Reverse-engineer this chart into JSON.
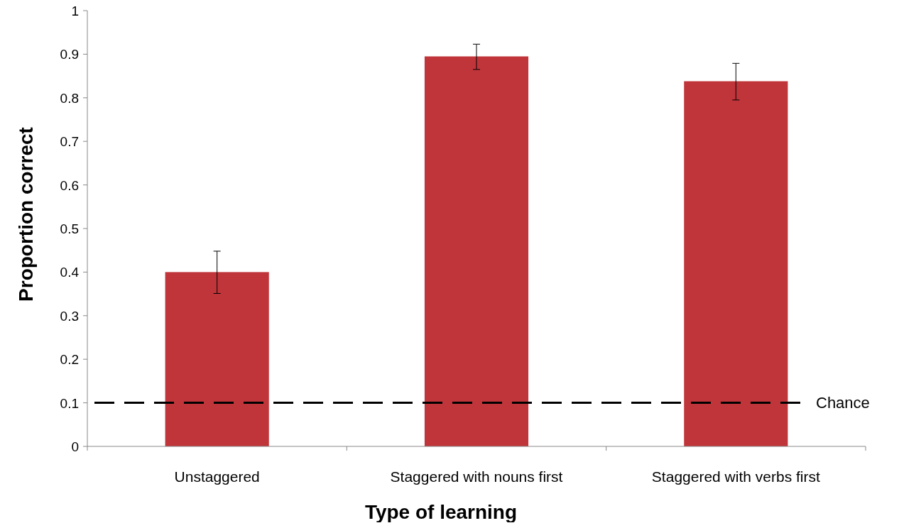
{
  "chart_data": {
    "type": "bar",
    "xlabel": "Type of learning",
    "ylabel": "Proportion correct",
    "categories": [
      "Unstaggered",
      "Staggered with nouns first",
      "Staggered with verbs first"
    ],
    "values": [
      0.4,
      0.895,
      0.838
    ],
    "errors": [
      [
        0.351,
        0.448
      ],
      [
        0.865,
        0.923
      ],
      [
        0.795,
        0.879
      ]
    ],
    "color": "#c0353a",
    "ylim": [
      0,
      1
    ],
    "yticks": [
      0,
      0.1,
      0.2,
      0.3,
      0.4,
      0.5,
      0.6,
      0.7,
      0.8,
      0.9,
      1
    ],
    "ref_lines": [
      {
        "axis": "y",
        "value": 0.1,
        "label": "Chance",
        "color": "#000000",
        "line_style": "dashed"
      }
    ],
    "grid": false
  }
}
